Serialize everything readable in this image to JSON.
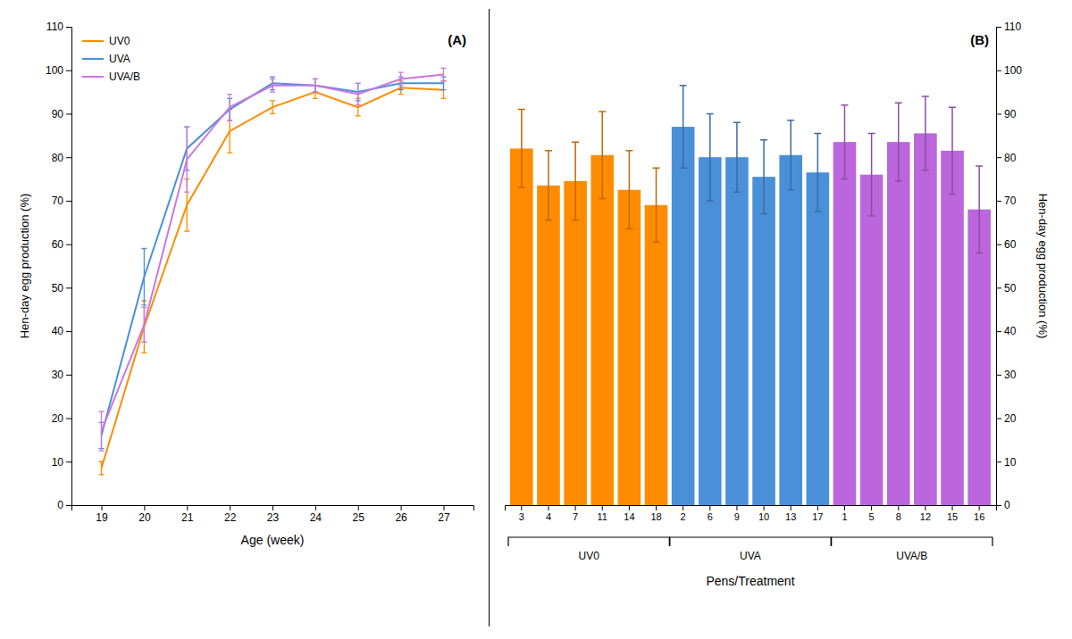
{
  "chart_data": [
    {
      "type": "line",
      "x_label": "Age (week)",
      "y_label": "Hen-day egg production (%)",
      "annotations": [
        "(A)"
      ],
      "x": [
        19,
        20,
        21,
        22,
        23,
        24,
        25,
        26,
        27
      ],
      "xlim": [
        18.3,
        27.7
      ],
      "xticks": [
        19,
        20,
        21,
        22,
        23,
        24,
        25,
        26,
        27
      ],
      "ylim": [
        0,
        110
      ],
      "yticks": [
        0,
        10,
        20,
        30,
        40,
        50,
        60,
        70,
        80,
        90,
        100,
        110
      ],
      "grid": false,
      "legend": "upper left",
      "series": [
        {
          "name": "UV0",
          "color": "#FF8C00",
          "values": [
            8.5,
            41.0,
            69.0,
            86.0,
            91.5,
            95.0,
            91.5,
            96.0,
            95.5
          ],
          "errors": [
            1.5,
            6.0,
            6.0,
            5.0,
            1.5,
            1.5,
            2.0,
            1.5,
            2.0
          ]
        },
        {
          "name": "UVA",
          "color": "#4A90D9",
          "values": [
            16.0,
            52.5,
            82.0,
            91.0,
            97.0,
            96.5,
            95.0,
            97.0,
            97.0
          ],
          "errors": [
            3.0,
            6.5,
            5.0,
            2.5,
            1.5,
            1.5,
            2.0,
            1.5,
            1.5
          ]
        },
        {
          "name": "UVA/B",
          "color": "#CC77DD",
          "values": [
            17.0,
            41.5,
            79.5,
            91.5,
            96.5,
            96.5,
            94.5,
            98.0,
            99.0
          ],
          "errors": [
            4.5,
            4.0,
            7.5,
            3.0,
            1.5,
            1.5,
            2.5,
            1.5,
            1.5
          ]
        }
      ]
    },
    {
      "type": "bar",
      "x_label": "Pens/Treatment",
      "y_label": "Hen-day egg production (%)",
      "annotations": [
        "(B)"
      ],
      "categories": [
        "3",
        "4",
        "7",
        "11",
        "14",
        "18",
        "2",
        "6",
        "9",
        "10",
        "13",
        "17",
        "1",
        "5",
        "8",
        "12",
        "15",
        "16"
      ],
      "values": [
        82.0,
        73.5,
        74.5,
        80.5,
        72.5,
        69.0,
        87.0,
        80.0,
        80.0,
        75.5,
        80.5,
        76.5,
        83.5,
        76.0,
        83.5,
        85.5,
        81.5,
        68.0
      ],
      "errors": [
        9.0,
        8.0,
        9.0,
        10.0,
        9.0,
        8.5,
        9.5,
        10.0,
        8.0,
        8.5,
        8.0,
        9.0,
        8.5,
        9.5,
        9.0,
        8.5,
        10.0,
        10.0
      ],
      "colors": [
        "#FF8C00",
        "#FF8C00",
        "#FF8C00",
        "#FF8C00",
        "#FF8C00",
        "#FF8C00",
        "#4A90D9",
        "#4A90D9",
        "#4A90D9",
        "#4A90D9",
        "#4A90D9",
        "#4A90D9",
        "#BB66DD",
        "#BB66DD",
        "#BB66DD",
        "#BB66DD",
        "#BB66DD",
        "#BB66DD"
      ],
      "ylim": [
        0,
        110
      ],
      "yticks": [
        0,
        10,
        20,
        30,
        40,
        50,
        60,
        70,
        80,
        90,
        100,
        110
      ],
      "grid": false,
      "groups": [
        {
          "start": 0,
          "end": 5,
          "label": "UV0"
        },
        {
          "start": 6,
          "end": 11,
          "label": "UVA"
        },
        {
          "start": 12,
          "end": 17,
          "label": "UVA/B"
        }
      ]
    }
  ]
}
